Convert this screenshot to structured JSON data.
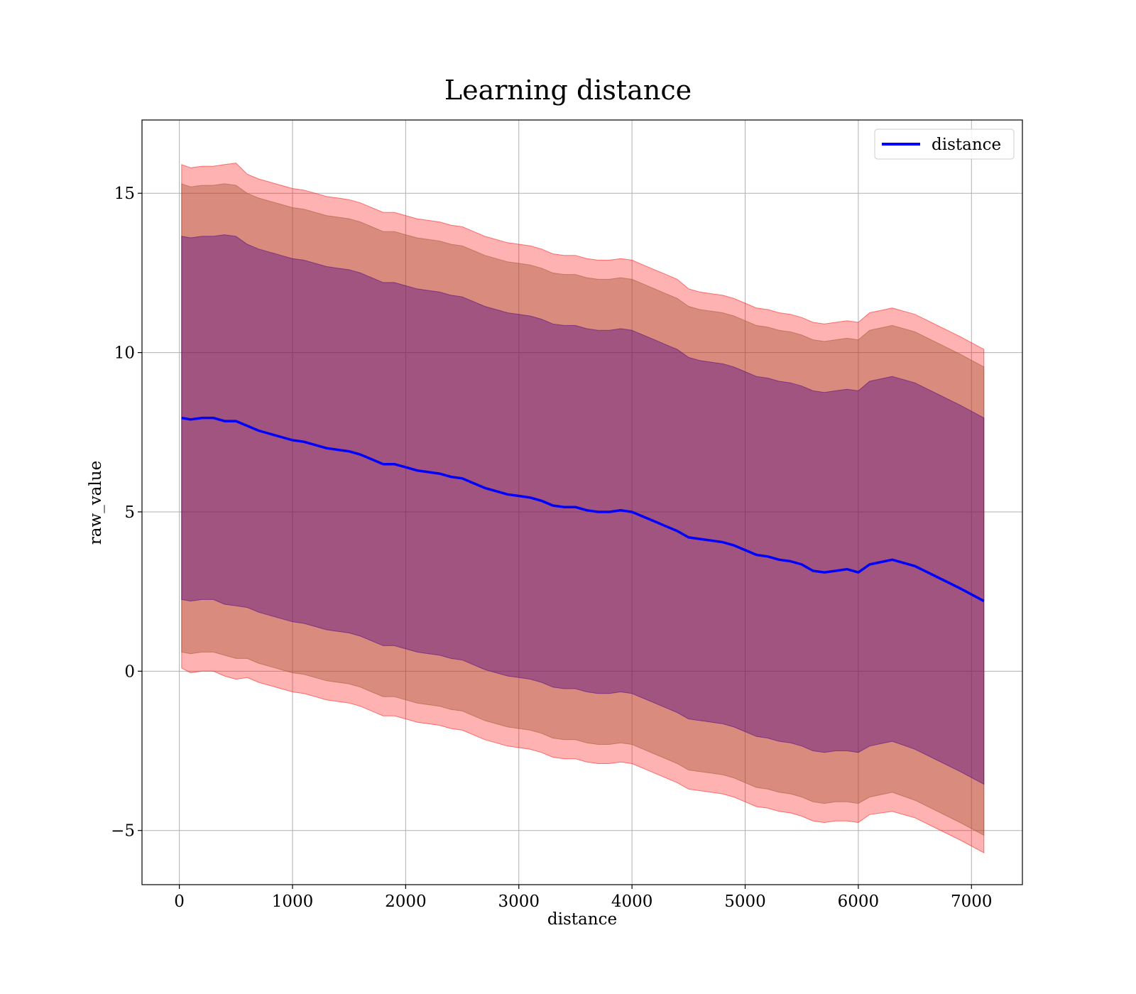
{
  "chart_data": {
    "type": "area",
    "title": "Learning distance",
    "xlabel": "distance",
    "ylabel": "raw_value",
    "xlim": [
      -330,
      7450
    ],
    "ylim": [
      -6.7,
      17.3
    ],
    "x_ticks": [
      0,
      1000,
      2000,
      3000,
      4000,
      5000,
      6000,
      7000
    ],
    "y_ticks": [
      -5,
      0,
      5,
      10,
      15
    ],
    "y_tick_labels": [
      "−5",
      "0",
      "5",
      "10",
      "15"
    ],
    "grid": true,
    "legend": {
      "placement": "upper right",
      "entries": [
        "distance"
      ]
    },
    "colors": {
      "mean_line": "#0000ff",
      "band_outer": "#ff0000",
      "band_middle": "#a0522d",
      "band_inner": "#4b0082"
    },
    "series": [
      {
        "name": "distance",
        "kind": "line",
        "x": [
          20,
          100,
          200,
          300,
          400,
          500,
          600,
          700,
          800,
          900,
          1000,
          1100,
          1200,
          1300,
          1400,
          1500,
          1600,
          1700,
          1800,
          1900,
          2000,
          2100,
          2200,
          2300,
          2400,
          2500,
          2600,
          2700,
          2800,
          2900,
          3000,
          3100,
          3200,
          3300,
          3400,
          3500,
          3600,
          3700,
          3800,
          3900,
          4000,
          4100,
          4200,
          4300,
          4400,
          4500,
          4600,
          4700,
          4800,
          4900,
          5000,
          5100,
          5200,
          5300,
          5400,
          5500,
          5600,
          5700,
          5800,
          5900,
          6000,
          6100,
          6300,
          6500,
          6700,
          6900,
          7110
        ],
        "y": [
          7.95,
          7.9,
          7.95,
          7.95,
          7.85,
          7.85,
          7.7,
          7.55,
          7.45,
          7.35,
          7.25,
          7.2,
          7.1,
          7.0,
          6.95,
          6.9,
          6.8,
          6.65,
          6.5,
          6.5,
          6.4,
          6.3,
          6.25,
          6.2,
          6.1,
          6.05,
          5.9,
          5.75,
          5.65,
          5.55,
          5.5,
          5.45,
          5.35,
          5.2,
          5.15,
          5.15,
          5.05,
          5.0,
          5.0,
          5.05,
          5.0,
          4.85,
          4.7,
          4.55,
          4.4,
          4.2,
          4.15,
          4.1,
          4.05,
          3.95,
          3.8,
          3.65,
          3.6,
          3.5,
          3.45,
          3.35,
          3.15,
          3.1,
          3.15,
          3.2,
          3.1,
          3.35,
          3.5,
          3.3,
          2.95,
          2.6,
          2.2
        ]
      },
      {
        "name": "outer band",
        "kind": "band",
        "x": [
          20,
          100,
          200,
          300,
          400,
          500,
          600,
          700,
          800,
          900,
          1000,
          1100,
          1200,
          1300,
          1400,
          1500,
          1600,
          1700,
          1800,
          1900,
          2000,
          2100,
          2200,
          2300,
          2400,
          2500,
          2600,
          2700,
          2800,
          2900,
          3000,
          3100,
          3200,
          3300,
          3400,
          3500,
          3600,
          3700,
          3800,
          3900,
          4000,
          4100,
          4200,
          4300,
          4400,
          4500,
          4600,
          4700,
          4800,
          4900,
          5000,
          5100,
          5200,
          5300,
          5400,
          5500,
          5600,
          5700,
          5800,
          5900,
          6000,
          6100,
          6300,
          6500,
          6700,
          6900,
          7110
        ],
        "upper": [
          15.9,
          15.8,
          15.85,
          15.85,
          15.9,
          15.95,
          15.6,
          15.45,
          15.35,
          15.25,
          15.15,
          15.1,
          15.0,
          14.9,
          14.85,
          14.8,
          14.7,
          14.55,
          14.4,
          14.4,
          14.3,
          14.2,
          14.15,
          14.1,
          14.0,
          13.95,
          13.8,
          13.65,
          13.55,
          13.45,
          13.4,
          13.35,
          13.25,
          13.1,
          13.05,
          13.05,
          12.95,
          12.9,
          12.9,
          12.95,
          12.9,
          12.75,
          12.6,
          12.45,
          12.3,
          12.0,
          11.9,
          11.85,
          11.8,
          11.7,
          11.55,
          11.4,
          11.35,
          11.25,
          11.2,
          11.1,
          10.95,
          10.9,
          10.95,
          11.0,
          10.95,
          11.25,
          11.4,
          11.2,
          10.85,
          10.5,
          10.1
        ],
        "lower": [
          0.1,
          -0.05,
          0.0,
          0.0,
          -0.15,
          -0.25,
          -0.2,
          -0.35,
          -0.45,
          -0.55,
          -0.65,
          -0.7,
          -0.8,
          -0.9,
          -0.95,
          -1.0,
          -1.1,
          -1.25,
          -1.4,
          -1.4,
          -1.5,
          -1.6,
          -1.65,
          -1.7,
          -1.8,
          -1.85,
          -2.0,
          -2.15,
          -2.25,
          -2.35,
          -2.4,
          -2.45,
          -2.55,
          -2.7,
          -2.75,
          -2.75,
          -2.85,
          -2.9,
          -2.9,
          -2.85,
          -2.9,
          -3.05,
          -3.2,
          -3.35,
          -3.5,
          -3.7,
          -3.75,
          -3.8,
          -3.85,
          -3.95,
          -4.1,
          -4.25,
          -4.3,
          -4.4,
          -4.45,
          -4.55,
          -4.7,
          -4.75,
          -4.7,
          -4.7,
          -4.75,
          -4.5,
          -4.4,
          -4.6,
          -4.95,
          -5.3,
          -5.7
        ]
      },
      {
        "name": "middle band",
        "kind": "band",
        "x": [
          20,
          100,
          200,
          300,
          400,
          500,
          600,
          700,
          800,
          900,
          1000,
          1100,
          1200,
          1300,
          1400,
          1500,
          1600,
          1700,
          1800,
          1900,
          2000,
          2100,
          2200,
          2300,
          2400,
          2500,
          2600,
          2700,
          2800,
          2900,
          3000,
          3100,
          3200,
          3300,
          3400,
          3500,
          3600,
          3700,
          3800,
          3900,
          4000,
          4100,
          4200,
          4300,
          4400,
          4500,
          4600,
          4700,
          4800,
          4900,
          5000,
          5100,
          5200,
          5300,
          5400,
          5500,
          5600,
          5700,
          5800,
          5900,
          6000,
          6100,
          6300,
          6500,
          6700,
          6900,
          7110
        ],
        "upper": [
          15.3,
          15.2,
          15.25,
          15.25,
          15.3,
          15.25,
          15.0,
          14.85,
          14.75,
          14.65,
          14.55,
          14.5,
          14.4,
          14.3,
          14.25,
          14.2,
          14.1,
          13.95,
          13.8,
          13.8,
          13.7,
          13.6,
          13.55,
          13.5,
          13.4,
          13.35,
          13.2,
          13.05,
          12.95,
          12.85,
          12.8,
          12.75,
          12.65,
          12.5,
          12.45,
          12.45,
          12.35,
          12.3,
          12.3,
          12.35,
          12.3,
          12.15,
          12.0,
          11.85,
          11.7,
          11.45,
          11.35,
          11.3,
          11.25,
          11.15,
          11.0,
          10.85,
          10.8,
          10.7,
          10.65,
          10.55,
          10.4,
          10.35,
          10.4,
          10.45,
          10.4,
          10.7,
          10.85,
          10.65,
          10.3,
          9.95,
          9.55
        ],
        "lower": [
          0.6,
          0.55,
          0.6,
          0.6,
          0.5,
          0.4,
          0.4,
          0.25,
          0.15,
          0.05,
          -0.05,
          -0.1,
          -0.2,
          -0.3,
          -0.35,
          -0.4,
          -0.5,
          -0.65,
          -0.8,
          -0.8,
          -0.9,
          -1.0,
          -1.05,
          -1.1,
          -1.2,
          -1.25,
          -1.4,
          -1.55,
          -1.65,
          -1.75,
          -1.8,
          -1.85,
          -1.95,
          -2.1,
          -2.15,
          -2.15,
          -2.25,
          -2.3,
          -2.3,
          -2.25,
          -2.3,
          -2.45,
          -2.6,
          -2.75,
          -2.9,
          -3.1,
          -3.15,
          -3.2,
          -3.25,
          -3.35,
          -3.5,
          -3.65,
          -3.7,
          -3.8,
          -3.85,
          -3.95,
          -4.1,
          -4.15,
          -4.1,
          -4.1,
          -4.15,
          -3.95,
          -3.8,
          -4.05,
          -4.4,
          -4.75,
          -5.15
        ]
      },
      {
        "name": "inner band",
        "kind": "band",
        "x": [
          20,
          100,
          200,
          300,
          400,
          500,
          600,
          700,
          800,
          900,
          1000,
          1100,
          1200,
          1300,
          1400,
          1500,
          1600,
          1700,
          1800,
          1900,
          2000,
          2100,
          2200,
          2300,
          2400,
          2500,
          2600,
          2700,
          2800,
          2900,
          3000,
          3100,
          3200,
          3300,
          3400,
          3500,
          3600,
          3700,
          3800,
          3900,
          4000,
          4100,
          4200,
          4300,
          4400,
          4500,
          4600,
          4700,
          4800,
          4900,
          5000,
          5100,
          5200,
          5300,
          5400,
          5500,
          5600,
          5700,
          5800,
          5900,
          6000,
          6100,
          6300,
          6500,
          6700,
          6900,
          7110
        ],
        "upper": [
          13.65,
          13.6,
          13.65,
          13.65,
          13.7,
          13.65,
          13.4,
          13.25,
          13.15,
          13.05,
          12.95,
          12.9,
          12.8,
          12.7,
          12.65,
          12.6,
          12.5,
          12.35,
          12.2,
          12.2,
          12.1,
          12.0,
          11.95,
          11.9,
          11.8,
          11.75,
          11.6,
          11.45,
          11.35,
          11.25,
          11.2,
          11.15,
          11.05,
          10.9,
          10.85,
          10.85,
          10.75,
          10.7,
          10.7,
          10.75,
          10.7,
          10.55,
          10.4,
          10.25,
          10.1,
          9.85,
          9.75,
          9.7,
          9.65,
          9.55,
          9.4,
          9.25,
          9.2,
          9.1,
          9.05,
          8.95,
          8.8,
          8.75,
          8.8,
          8.85,
          8.8,
          9.1,
          9.25,
          9.05,
          8.7,
          8.35,
          7.95
        ],
        "lower": [
          2.25,
          2.2,
          2.25,
          2.25,
          2.1,
          2.05,
          2.0,
          1.85,
          1.75,
          1.65,
          1.55,
          1.5,
          1.4,
          1.3,
          1.25,
          1.2,
          1.1,
          0.95,
          0.8,
          0.8,
          0.7,
          0.6,
          0.55,
          0.5,
          0.4,
          0.35,
          0.2,
          0.05,
          -0.05,
          -0.15,
          -0.2,
          -0.25,
          -0.35,
          -0.5,
          -0.55,
          -0.55,
          -0.65,
          -0.7,
          -0.7,
          -0.65,
          -0.7,
          -0.85,
          -1.0,
          -1.15,
          -1.3,
          -1.5,
          -1.55,
          -1.6,
          -1.65,
          -1.75,
          -1.9,
          -2.05,
          -2.1,
          -2.2,
          -2.25,
          -2.35,
          -2.5,
          -2.55,
          -2.5,
          -2.5,
          -2.55,
          -2.35,
          -2.2,
          -2.45,
          -2.8,
          -3.15,
          -3.55
        ]
      }
    ]
  }
}
